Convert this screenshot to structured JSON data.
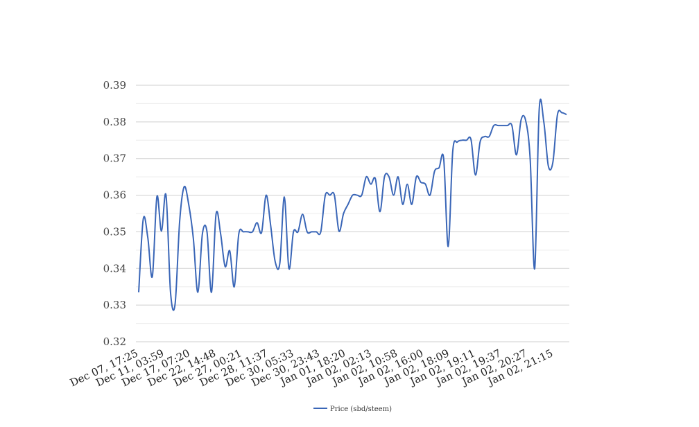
{
  "chart_data": {
    "type": "line",
    "title": "",
    "xlabel": "",
    "ylabel": "",
    "ylim": [
      0.32,
      0.39
    ],
    "y_ticks": [
      0.32,
      0.33,
      0.34,
      0.35,
      0.36,
      0.37,
      0.38,
      0.39
    ],
    "y_tick_labels": [
      "0.32",
      "0.33",
      "0.34",
      "0.35",
      "0.36",
      "0.37",
      "0.38",
      "0.39"
    ],
    "x_tick_labels": [
      "Dec 07, 17:25",
      "Dec 11, 03:59",
      "Dec 17, 07:20",
      "Dec 22, 14:48",
      "Dec 27, 00:21",
      "Dec 28, 11:37",
      "Dec 30, 05:33",
      "Dec 30, 23:43",
      "Jan 01, 18:20",
      "Jan 02, 02:13",
      "Jan 02, 10:58",
      "Jan 02, 16:00",
      "Jan 02, 18:09",
      "Jan 02, 19:11",
      "Jan 02, 19:37",
      "Jan 02, 20:27",
      "Jan 02, 21:15"
    ],
    "grid": true,
    "legend_position": "bottom",
    "series": [
      {
        "name": "Price (sbd/steem)",
        "color": "#3a66b7",
        "values": [
          0.3335,
          0.3535,
          0.3485,
          0.3378,
          0.3596,
          0.3502,
          0.36,
          0.3335,
          0.3303,
          0.3529,
          0.3623,
          0.3574,
          0.3482,
          0.3335,
          0.3495,
          0.35,
          0.3335,
          0.3549,
          0.3495,
          0.3405,
          0.3448,
          0.335,
          0.3495,
          0.35,
          0.35,
          0.35,
          0.3525,
          0.3498,
          0.36,
          0.3516,
          0.3418,
          0.3414,
          0.3595,
          0.34,
          0.35,
          0.35,
          0.3548,
          0.35,
          0.35,
          0.35,
          0.35,
          0.36,
          0.36,
          0.36,
          0.3502,
          0.355,
          0.3575,
          0.36,
          0.36,
          0.36,
          0.365,
          0.363,
          0.3645,
          0.3555,
          0.365,
          0.365,
          0.36,
          0.365,
          0.3575,
          0.363,
          0.3575,
          0.365,
          0.3635,
          0.363,
          0.36,
          0.3665,
          0.3675,
          0.37,
          0.346,
          0.372,
          0.3745,
          0.375,
          0.375,
          0.3752,
          0.3655,
          0.3745,
          0.376,
          0.376,
          0.379,
          0.379,
          0.379,
          0.379,
          0.379,
          0.371,
          0.3805,
          0.3805,
          0.37,
          0.34,
          0.3835,
          0.38,
          0.368,
          0.369,
          0.382,
          0.3825,
          0.382
        ]
      }
    ]
  }
}
